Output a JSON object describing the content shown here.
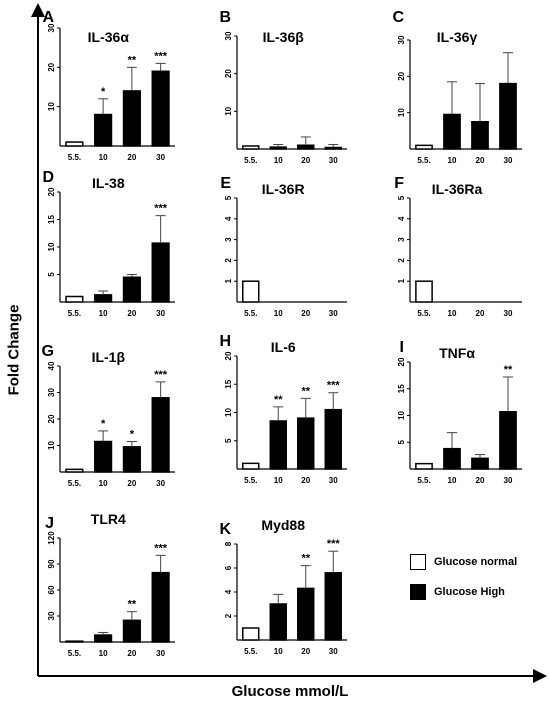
{
  "figure": {
    "y_axis_label": "Fold Change",
    "x_axis_label": "Glucose mmol/L"
  },
  "legend": [
    {
      "label": "Glucose normal",
      "color": "#ffffff"
    },
    {
      "label": "Glucose High",
      "color": "#000000"
    }
  ],
  "chart_data": [
    {
      "panel": "A",
      "title": "IL-36α",
      "type": "bar",
      "categories": [
        "5.5.",
        "10",
        "20",
        "30"
      ],
      "values": [
        1,
        8,
        14,
        19
      ],
      "errors": [
        0,
        4,
        6,
        2
      ],
      "significance": [
        "",
        "*",
        "**",
        "***"
      ],
      "ylim": [
        0,
        30
      ],
      "yticks": [
        10,
        20,
        30
      ],
      "colors": [
        "#ffffff",
        "#000000",
        "#000000",
        "#000000"
      ]
    },
    {
      "panel": "B",
      "title": "IL-36β",
      "type": "bar",
      "categories": [
        "5.5.",
        "10",
        "20",
        "30"
      ],
      "values": [
        0.8,
        0.5,
        1,
        0.4
      ],
      "errors": [
        0,
        0.7,
        2.2,
        0.8
      ],
      "significance": [
        "",
        "",
        "",
        ""
      ],
      "ylim": [
        0,
        30
      ],
      "yticks": [
        10,
        20,
        30
      ],
      "colors": [
        "#ffffff",
        "#000000",
        "#000000",
        "#000000"
      ]
    },
    {
      "panel": "C",
      "title": "IL-36γ",
      "type": "bar",
      "categories": [
        "5.5.",
        "10",
        "20",
        "30"
      ],
      "values": [
        1,
        9.5,
        7.5,
        18
      ],
      "errors": [
        0,
        9,
        10.5,
        8.5
      ],
      "significance": [
        "",
        "",
        "",
        ""
      ],
      "ylim": [
        0,
        30
      ],
      "yticks": [
        10,
        20,
        30
      ],
      "colors": [
        "#ffffff",
        "#000000",
        "#000000",
        "#000000"
      ]
    },
    {
      "panel": "D",
      "title": "IL-38",
      "type": "bar",
      "categories": [
        "5.5.",
        "10",
        "20",
        "30"
      ],
      "values": [
        1,
        1.3,
        4.5,
        10.7
      ],
      "errors": [
        0,
        0.7,
        0.5,
        5
      ],
      "significance": [
        "",
        "",
        "",
        "***"
      ],
      "ylim": [
        0,
        20
      ],
      "yticks": [
        5,
        10,
        15,
        20
      ],
      "colors": [
        "#ffffff",
        "#000000",
        "#000000",
        "#000000"
      ]
    },
    {
      "panel": "E",
      "title": "IL-36R",
      "type": "bar",
      "categories": [
        "5.5.",
        "10",
        "20",
        "30"
      ],
      "values": [
        1,
        0,
        0,
        0
      ],
      "errors": [
        0,
        0,
        0,
        0
      ],
      "significance": [
        "",
        "",
        "",
        ""
      ],
      "ylim": [
        0,
        5
      ],
      "yticks": [
        1,
        2,
        3,
        4,
        5
      ],
      "colors": [
        "#ffffff",
        "#000000",
        "#000000",
        "#000000"
      ]
    },
    {
      "panel": "F",
      "title": "IL-36Ra",
      "type": "bar",
      "categories": [
        "5.5.",
        "10",
        "20",
        "30"
      ],
      "values": [
        1,
        0,
        0,
        0
      ],
      "errors": [
        0,
        0,
        0,
        0
      ],
      "significance": [
        "",
        "",
        "",
        ""
      ],
      "ylim": [
        0,
        5
      ],
      "yticks": [
        1,
        2,
        3,
        4,
        5
      ],
      "colors": [
        "#ffffff",
        "#000000",
        "#000000",
        "#000000"
      ]
    },
    {
      "panel": "G",
      "title": "IL-1β",
      "type": "bar",
      "categories": [
        "5.5.",
        "10",
        "20",
        "30"
      ],
      "values": [
        1,
        11.5,
        9.5,
        28
      ],
      "errors": [
        0,
        4,
        2,
        6
      ],
      "significance": [
        "",
        "*",
        "*",
        "***"
      ],
      "ylim": [
        0,
        40
      ],
      "yticks": [
        10,
        20,
        30,
        40
      ],
      "colors": [
        "#ffffff",
        "#000000",
        "#000000",
        "#000000"
      ]
    },
    {
      "panel": "H",
      "title": "IL-6",
      "type": "bar",
      "categories": [
        "5.5.",
        "10",
        "20",
        "30"
      ],
      "values": [
        1,
        8.5,
        9,
        10.5
      ],
      "errors": [
        0,
        2.5,
        3.5,
        3
      ],
      "significance": [
        "",
        "**",
        "**",
        "***"
      ],
      "ylim": [
        0,
        20
      ],
      "yticks": [
        5,
        10,
        15,
        20
      ],
      "colors": [
        "#ffffff",
        "#000000",
        "#000000",
        "#000000"
      ]
    },
    {
      "panel": "I",
      "title": "TNFα",
      "type": "bar",
      "categories": [
        "5.5.",
        "10",
        "20",
        "30"
      ],
      "values": [
        1,
        3.8,
        2,
        10.7
      ],
      "errors": [
        0,
        3,
        0.7,
        6.5
      ],
      "significance": [
        "",
        "",
        "",
        "**"
      ],
      "ylim": [
        0,
        20
      ],
      "yticks": [
        5,
        10,
        15,
        20
      ],
      "colors": [
        "#ffffff",
        "#000000",
        "#000000",
        "#000000"
      ]
    },
    {
      "panel": "J",
      "title": "TLR4",
      "type": "bar",
      "categories": [
        "5.5.",
        "10",
        "20",
        "30"
      ],
      "values": [
        1,
        8,
        25,
        80
      ],
      "errors": [
        0,
        3,
        10,
        20
      ],
      "significance": [
        "",
        "",
        "**",
        "***"
      ],
      "ylim": [
        0,
        120
      ],
      "yticks": [
        30,
        60,
        90,
        120
      ],
      "colors": [
        "#ffffff",
        "#000000",
        "#000000",
        "#000000"
      ]
    },
    {
      "panel": "K",
      "title": "Myd88",
      "type": "bar",
      "categories": [
        "5.5.",
        "10",
        "20",
        "30"
      ],
      "values": [
        1,
        3,
        4.3,
        5.6
      ],
      "errors": [
        0,
        0.8,
        1.9,
        1.8
      ],
      "significance": [
        "",
        "",
        "**",
        "***"
      ],
      "ylim": [
        0,
        8
      ],
      "yticks": [
        2,
        4,
        6,
        8
      ],
      "colors": [
        "#ffffff",
        "#000000",
        "#000000",
        "#000000"
      ]
    }
  ]
}
